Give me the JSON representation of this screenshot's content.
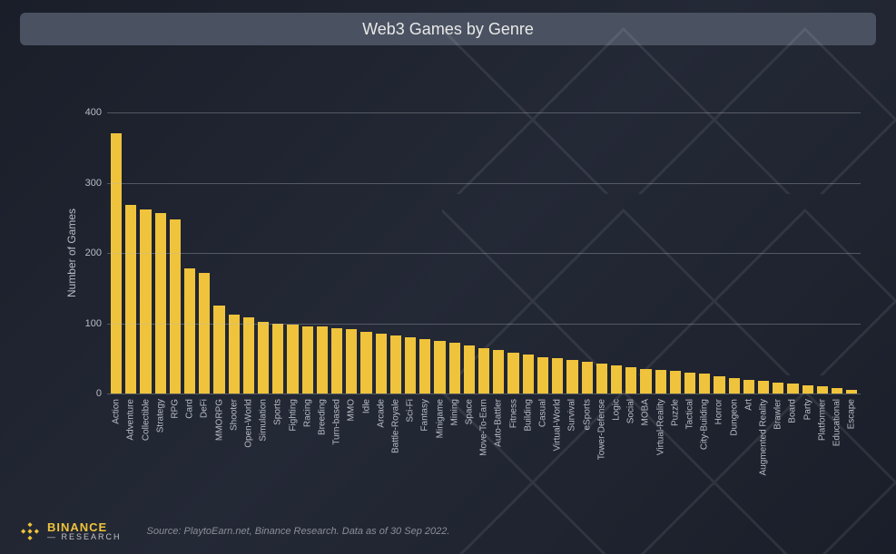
{
  "title": "Web3 Games by Genre",
  "chart": {
    "type": "bar",
    "ylabel": "Number of Games",
    "ylim": [
      0,
      400
    ],
    "ytick_step": 100,
    "yticks": [
      0,
      100,
      200,
      300,
      400
    ],
    "bar_color": "#efc33b",
    "grid_color": "rgba(180,185,195,0.35)",
    "background_color": "transparent",
    "label_color": "#b8bcc5",
    "label_fontsize": 11,
    "xlabel_fontsize": 10,
    "categories": [
      "Action",
      "Adventure",
      "Collectible",
      "Strategy",
      "RPG",
      "Card",
      "DeFi",
      "MMORPG",
      "Shooter",
      "Open-World",
      "Simulation",
      "Sports",
      "Fighting",
      "Racing",
      "Breeding",
      "Turn-based",
      "MMO",
      "Idle",
      "Arcade",
      "Battle-Royale",
      "Sci-Fi",
      "Fantasy",
      "Minigame",
      "Mining",
      "Space",
      "Move-To-Earn",
      "Auto-Battler",
      "Fitness",
      "Building",
      "Casual",
      "Virtual-World",
      "Survival",
      "eSports",
      "Tower-Defense",
      "Logic",
      "Social",
      "MOBA",
      "Virtual-Reality",
      "Puzzle",
      "Tactical",
      "City-Building",
      "Horror",
      "Dungeon",
      "Art",
      "Augmented Reality",
      "Brawler",
      "Board",
      "Party",
      "Platformer",
      "Educational",
      "Escape"
    ],
    "values": [
      370,
      268,
      262,
      257,
      248,
      178,
      172,
      125,
      112,
      108,
      102,
      100,
      98,
      96,
      95,
      93,
      91,
      88,
      85,
      83,
      80,
      78,
      75,
      72,
      68,
      65,
      62,
      58,
      56,
      52,
      50,
      48,
      45,
      42,
      40,
      38,
      35,
      33,
      32,
      30,
      28,
      25,
      22,
      20,
      18,
      16,
      14,
      12,
      10,
      8,
      5
    ]
  },
  "footer": {
    "logo_main": "BINANCE",
    "logo_sub": "— RESEARCH",
    "source": "Source: PlaytoEarn.net, Binance Research. Data as of 30 Sep 2022."
  },
  "colors": {
    "title_bar_bg": "#4a5160",
    "title_text": "#e8e8e8",
    "accent": "#efc33b",
    "muted_text": "#8a8e98"
  }
}
